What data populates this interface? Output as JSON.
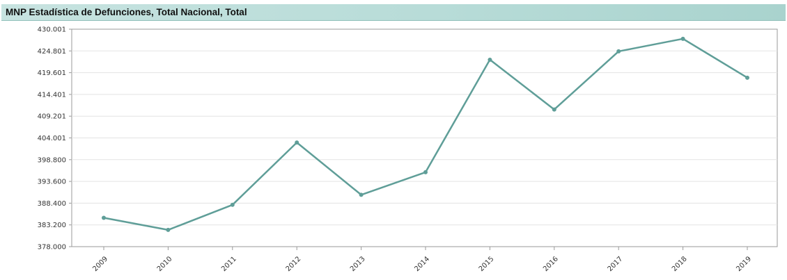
{
  "chart_data": {
    "type": "line",
    "title": "MNP Estadística de Defunciones, Total Nacional, Total",
    "xlabel": "",
    "ylabel": "",
    "categories": [
      "2009",
      "2010",
      "2011",
      "2012",
      "2013",
      "2014",
      "2015",
      "2016",
      "2017",
      "2018",
      "2019"
    ],
    "series": [
      {
        "values": [
          384900,
          382000,
          388000,
          402900,
          390400,
          395800,
          422700,
          410800,
          424700,
          427700,
          418400
        ]
      }
    ],
    "y_ticks": [
      "430.001",
      "424.801",
      "419.601",
      "414.401",
      "409.201",
      "404.001",
      "398.800",
      "393.600",
      "388.400",
      "383.200",
      "378.000"
    ],
    "ylim": [
      378000,
      430001
    ],
    "grid": true,
    "legend": "none",
    "line_color": "#5f9e98",
    "marker_color": "#5f9e98"
  }
}
